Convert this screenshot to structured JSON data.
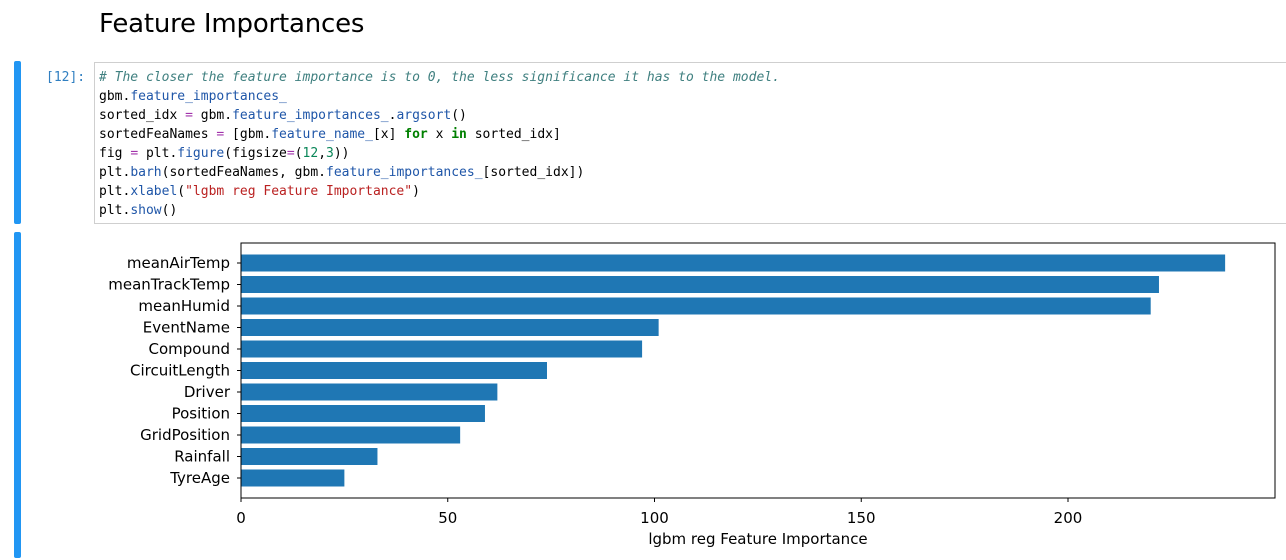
{
  "heading": "Feature Importances",
  "cell": {
    "prompt": "[12]:",
    "code_lines": [
      [
        {
          "t": "# The closer the feature importance is to 0, the less significance it has to the model.",
          "c": "c-com"
        }
      ],
      [
        {
          "t": "gbm."
        },
        {
          "t": "feature_importances_",
          "c": "c-attr"
        }
      ],
      [
        {
          "t": "sorted_idx "
        },
        {
          "t": "=",
          "c": "c-op"
        },
        {
          "t": " gbm."
        },
        {
          "t": "feature_importances_",
          "c": "c-attr"
        },
        {
          "t": "."
        },
        {
          "t": "argsort",
          "c": "c-attr"
        },
        {
          "t": "()"
        }
      ],
      [
        {
          "t": "sortedFeaNames "
        },
        {
          "t": "=",
          "c": "c-op"
        },
        {
          "t": " [gbm."
        },
        {
          "t": "feature_name_",
          "c": "c-attr"
        },
        {
          "t": "[x] "
        },
        {
          "t": "for",
          "c": "c-kw"
        },
        {
          "t": " x "
        },
        {
          "t": "in",
          "c": "c-kw"
        },
        {
          "t": " sorted_idx]"
        }
      ],
      [
        {
          "t": "fig "
        },
        {
          "t": "=",
          "c": "c-op"
        },
        {
          "t": " plt."
        },
        {
          "t": "figure",
          "c": "c-attr"
        },
        {
          "t": "(figsize"
        },
        {
          "t": "=",
          "c": "c-op"
        },
        {
          "t": "("
        },
        {
          "t": "12",
          "c": "c-num"
        },
        {
          "t": ","
        },
        {
          "t": "3",
          "c": "c-num"
        },
        {
          "t": "))"
        }
      ],
      [
        {
          "t": "plt."
        },
        {
          "t": "barh",
          "c": "c-attr"
        },
        {
          "t": "(sortedFeaNames, gbm."
        },
        {
          "t": "feature_importances_",
          "c": "c-attr"
        },
        {
          "t": "[sorted_idx])"
        }
      ],
      [
        {
          "t": "plt."
        },
        {
          "t": "xlabel",
          "c": "c-attr"
        },
        {
          "t": "("
        },
        {
          "t": "\"lgbm reg Feature Importance\"",
          "c": "c-str"
        },
        {
          "t": ")"
        }
      ],
      [
        {
          "t": "plt."
        },
        {
          "t": "show",
          "c": "c-attr"
        },
        {
          "t": "()"
        }
      ]
    ]
  },
  "colors": {
    "cell_accent": "#2196f3",
    "bar": "#1f77b4"
  },
  "chart_data": {
    "type": "bar",
    "orientation": "horizontal",
    "categories": [
      "meanAirTemp",
      "meanTrackTemp",
      "meanHumid",
      "EventName",
      "Compound",
      "CircuitLength",
      "Driver",
      "Position",
      "GridPosition",
      "Rainfall",
      "TyreAge"
    ],
    "values": [
      238,
      222,
      220,
      101,
      97,
      74,
      62,
      59,
      53,
      33,
      25
    ],
    "xlabel": "lgbm reg Feature Importance",
    "xticks": [
      0,
      50,
      100,
      150,
      200
    ],
    "xlim": [
      0,
      250
    ],
    "grid": false
  }
}
